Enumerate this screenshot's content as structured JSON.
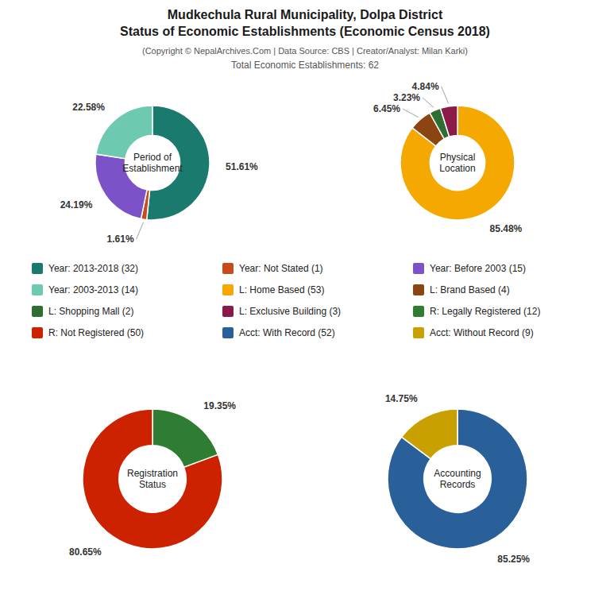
{
  "title": [
    "Mudkechula Rural Municipality, Dolpa District",
    "Status of Economic Establishments (Economic Census 2018)"
  ],
  "subtitle": [
    "(Copyright © NepalArchives.Com | Data Source: CBS | Creator/Analyst: Milan Karki)",
    "Total Economic Establishments: 62"
  ],
  "chart_data": [
    {
      "type": "pie",
      "title": "Period of\nEstablishment",
      "categories": [
        "Year: 2013-2018 (32)",
        "Year: Not Stated (1)",
        "Year: Before 2003 (15)",
        "Year: 2003-2013 (14)"
      ],
      "values": [
        51.61,
        1.61,
        24.19,
        22.58
      ],
      "value_labels": [
        "51.61%",
        "1.61%",
        "24.19%",
        "22.58%"
      ],
      "colors": [
        "#1a7a6e",
        "#c84b1e",
        "#7b52c8",
        "#6dcab0"
      ],
      "data_labels": true
    },
    {
      "type": "pie",
      "title": "Physical\nLocation",
      "categories": [
        "L: Home Based (53)",
        "L: Brand Based (4)",
        "L: Shopping Mall (2)",
        "L: Exclusive Building (3)"
      ],
      "values": [
        85.48,
        6.45,
        3.23,
        4.84
      ],
      "value_labels": [
        "85.48%",
        "6.45%",
        "3.23%",
        "4.84%"
      ],
      "colors": [
        "#f5a800",
        "#8b4513",
        "#2e6e32",
        "#8b1a4a"
      ],
      "data_labels": true
    },
    {
      "type": "pie",
      "title": "Registration\nStatus",
      "categories": [
        "R: Legally Registered (12)",
        "R: Not Registered (50)"
      ],
      "values": [
        19.35,
        80.65
      ],
      "value_labels": [
        "19.35%",
        "80.65%"
      ],
      "colors": [
        "#2e7d32",
        "#cc2200"
      ],
      "data_labels": true
    },
    {
      "type": "pie",
      "title": "Accounting\nRecords",
      "categories": [
        "Acct: With Record (52)",
        "Acct: Without Record (9)"
      ],
      "values": [
        85.25,
        14.75
      ],
      "value_labels": [
        "85.25%",
        "14.75%"
      ],
      "colors": [
        "#2a6099",
        "#c8a000"
      ],
      "data_labels": true
    }
  ]
}
